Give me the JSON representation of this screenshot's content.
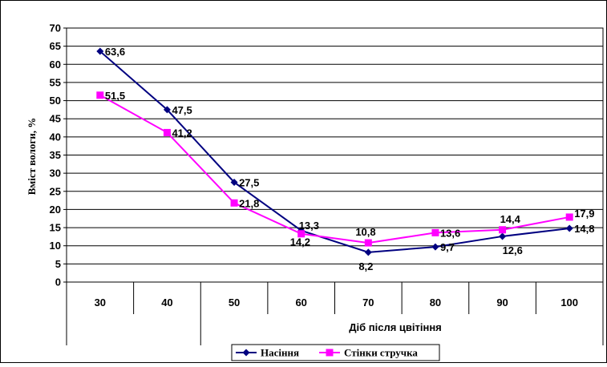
{
  "chart_data": {
    "type": "line",
    "title": "",
    "xlabel": "Діб після цвітіння",
    "ylabel": "Вміст вологи, %",
    "categories": [
      "30",
      "40",
      "50",
      "60",
      "70",
      "80",
      "90",
      "100"
    ],
    "ylim": [
      0,
      70
    ],
    "yticks": [
      "0",
      "5",
      "10",
      "15",
      "20",
      "25",
      "30",
      "35",
      "40",
      "45",
      "50",
      "55",
      "60",
      "65",
      "70"
    ],
    "grid": true,
    "legend_position": "bottom",
    "series": [
      {
        "name": "Насіння",
        "values": [
          63.6,
          47.5,
          27.5,
          14.2,
          8.2,
          9.7,
          12.6,
          14.8
        ],
        "labels": [
          "63,6",
          "47,5",
          "27,5",
          "14,2",
          "8,2",
          "9,7",
          "12,6",
          "14,8"
        ],
        "color": "#000080",
        "marker": "diamond"
      },
      {
        "name": "Стінки стручка",
        "values": [
          51.5,
          41.2,
          21.8,
          13.3,
          10.8,
          13.6,
          14.4,
          17.9
        ],
        "labels": [
          "51,5",
          "41,2",
          "21,8",
          "13,3",
          "10,8",
          "13,6",
          "14,4",
          "17,9"
        ],
        "color": "#FF00FF",
        "marker": "square"
      }
    ]
  }
}
